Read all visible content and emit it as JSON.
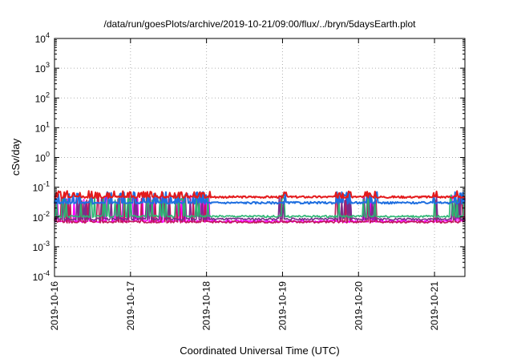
{
  "chart_data": {
    "type": "line",
    "title": "/data/run/goesPlots/archive/2019-10-21/09:00/flux/../bryn/5daysEarth.plot",
    "xlabel": "Coordinated Universal Time (UTC)",
    "ylabel": "cSv/day",
    "yscale": "log",
    "ylim": [
      0.0001,
      10000
    ],
    "xlim_days": [
      0,
      5.4
    ],
    "grid": true,
    "legend": "none",
    "x_tick_labels": [
      "2019-10-16",
      "2019-10-17",
      "2019-10-18",
      "2019-10-19",
      "2019-10-20",
      "2019-10-21"
    ],
    "y_ticks": [
      {
        "base": "10",
        "exp": "-4"
      },
      {
        "base": "10",
        "exp": "-3"
      },
      {
        "base": "10",
        "exp": "-2"
      },
      {
        "base": "10",
        "exp": "-1"
      },
      {
        "base": "10",
        "exp": "0"
      },
      {
        "base": "10",
        "exp": "1"
      },
      {
        "base": "10",
        "exp": "2"
      },
      {
        "base": "10",
        "exp": "3"
      },
      {
        "base": "10",
        "exp": "4"
      }
    ],
    "series": [
      {
        "color": "#e41a1c",
        "base": 0.047,
        "spike": 0.075
      },
      {
        "color": "#1f6fe0",
        "base": 0.03,
        "spike": 0.07
      },
      {
        "color": "#2bb673",
        "base": 0.0105,
        "spike": 0.055
      },
      {
        "color": "#7b2d8b",
        "base": 0.0085,
        "spike": 0.05
      },
      {
        "color": "#c0185a",
        "base": 0.0068,
        "spike": 0.05
      },
      {
        "color": "#ff00ff",
        "base": 0.0072,
        "spike": 0.055
      }
    ]
  }
}
